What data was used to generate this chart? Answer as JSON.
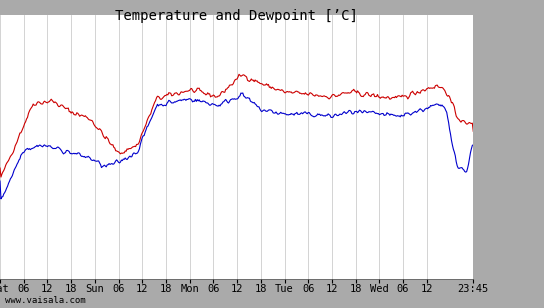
{
  "title": "Temperature and Dewpoint [’C]",
  "ylim": [
    -6,
    6
  ],
  "yticks": [
    -6,
    -5,
    -4,
    -3,
    -2,
    -1,
    0,
    1,
    2,
    3,
    4,
    5,
    6
  ],
  "xtick_labels": [
    "Sat",
    "06",
    "12",
    "18",
    "Sun",
    "06",
    "12",
    "18",
    "Mon",
    "06",
    "12",
    "18",
    "Tue",
    "06",
    "12",
    "18",
    "Wed",
    "06",
    "12",
    "23:45"
  ],
  "temp_color": "#cc0000",
  "dewp_color": "#0000cc",
  "plot_bg": "#ffffff",
  "outer_bg": "#aaaaaa",
  "grid_color": "#cccccc",
  "font_family": "monospace",
  "title_fontsize": 10,
  "tick_fontsize": 7.5,
  "watermark": "www.vaisala.com",
  "fig_width": 5.44,
  "fig_height": 3.08,
  "dpi": 100
}
